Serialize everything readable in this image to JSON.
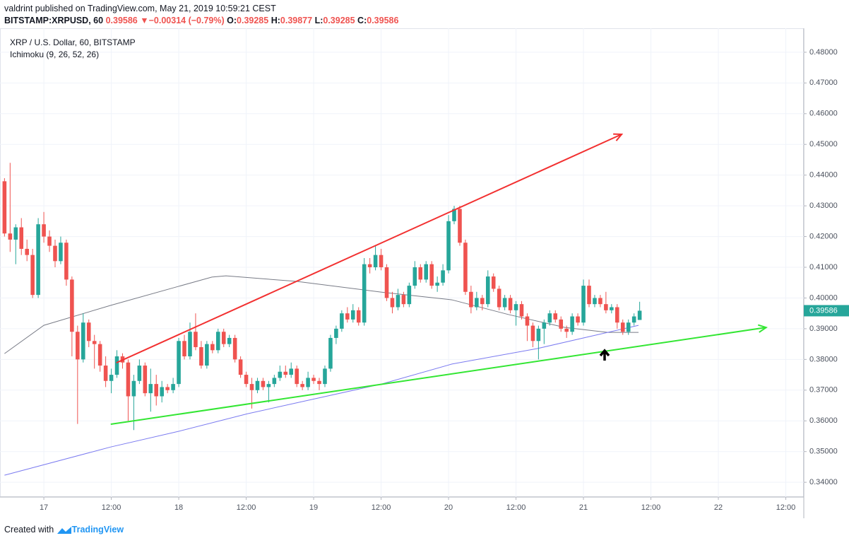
{
  "header": {
    "publisher": "valdrint published on TradingView.com, May 21, 2019 10:59:21 CEST",
    "symbol": "BITSTAMP:XRPUSD, 60",
    "last": "0.39586",
    "arrow": "▼",
    "change": "−0.00314 (−0.79%)",
    "o_label": "O:",
    "o": "0.39285",
    "h_label": "H:",
    "h": "0.39877",
    "l_label": "L:",
    "l": "0.39285",
    "c_label": "C:",
    "c": "0.39586"
  },
  "footer": {
    "created": "Created with",
    "brand": "TradingView"
  },
  "chart_data": {
    "type": "candlestick",
    "title": "XRP / U.S. Dollar, 60, BITSTAMP",
    "subtitle": "Ichimoku (9, 26, 52, 26)",
    "up_color": "#26a69a",
    "down_color": "#ef5350",
    "x": [
      -7,
      -6,
      -5,
      -4,
      -3,
      -2,
      -1,
      0,
      1,
      2,
      3,
      4,
      5,
      6,
      7,
      8,
      9,
      10,
      11,
      12,
      13,
      14,
      15,
      16,
      17,
      18,
      19,
      20,
      21,
      22,
      23,
      24,
      25,
      26,
      27,
      28,
      29,
      30,
      31,
      32,
      33,
      34,
      35,
      36,
      37,
      38,
      39,
      40,
      41,
      42,
      43,
      44,
      45,
      46,
      47,
      48,
      49,
      50,
      51,
      52,
      53,
      54,
      55,
      56,
      57,
      58,
      59,
      60,
      61,
      62,
      63,
      64,
      65,
      66,
      67,
      68,
      69,
      70,
      71,
      72,
      73,
      74,
      75,
      76,
      77,
      78,
      79,
      80,
      81,
      82,
      83,
      84,
      85,
      86,
      87,
      88,
      89,
      90,
      91,
      92,
      93,
      94,
      95,
      96,
      97,
      98,
      99,
      100,
      101,
      102,
      103,
      104,
      105,
      106
    ],
    "candles": [
      [
        0.438,
        0.439,
        0.42,
        0.421
      ],
      [
        0.421,
        0.444,
        0.415,
        0.419
      ],
      [
        0.419,
        0.424,
        0.411,
        0.423
      ],
      [
        0.423,
        0.426,
        0.414,
        0.416
      ],
      [
        0.416,
        0.419,
        0.412,
        0.414
      ],
      [
        0.414,
        0.416,
        0.4,
        0.401
      ],
      [
        0.401,
        0.426,
        0.4,
        0.424
      ],
      [
        0.424,
        0.428,
        0.418,
        0.42
      ],
      [
        0.42,
        0.422,
        0.415,
        0.417
      ],
      [
        0.417,
        0.419,
        0.41,
        0.412
      ],
      [
        0.412,
        0.42,
        0.411,
        0.418
      ],
      [
        0.418,
        0.419,
        0.404,
        0.406
      ],
      [
        0.406,
        0.407,
        0.381,
        0.389
      ],
      [
        0.389,
        0.391,
        0.359,
        0.38
      ],
      [
        0.38,
        0.395,
        0.379,
        0.392
      ],
      [
        0.392,
        0.393,
        0.384,
        0.386
      ],
      [
        0.386,
        0.388,
        0.377,
        0.385
      ],
      [
        0.385,
        0.386,
        0.376,
        0.378
      ],
      [
        0.378,
        0.381,
        0.371,
        0.373
      ],
      [
        0.373,
        0.377,
        0.369,
        0.375
      ],
      [
        0.375,
        0.383,
        0.374,
        0.381
      ],
      [
        0.381,
        0.382,
        0.377,
        0.379
      ],
      [
        0.379,
        0.38,
        0.36,
        0.368
      ],
      [
        0.368,
        0.375,
        0.357,
        0.373
      ],
      [
        0.373,
        0.38,
        0.372,
        0.378
      ],
      [
        0.378,
        0.379,
        0.368,
        0.369
      ],
      [
        0.369,
        0.377,
        0.363,
        0.372
      ],
      [
        0.372,
        0.375,
        0.365,
        0.368
      ],
      [
        0.368,
        0.373,
        0.366,
        0.371
      ],
      [
        0.371,
        0.372,
        0.369,
        0.37
      ],
      [
        0.37,
        0.374,
        0.369,
        0.372
      ],
      [
        0.372,
        0.387,
        0.371,
        0.386
      ],
      [
        0.386,
        0.388,
        0.38,
        0.381
      ],
      [
        0.381,
        0.392,
        0.38,
        0.389
      ],
      [
        0.389,
        0.395,
        0.383,
        0.384
      ],
      [
        0.384,
        0.386,
        0.377,
        0.378
      ],
      [
        0.378,
        0.386,
        0.377,
        0.385
      ],
      [
        0.385,
        0.386,
        0.382,
        0.383
      ],
      [
        0.383,
        0.39,
        0.382,
        0.389
      ],
      [
        0.389,
        0.39,
        0.384,
        0.385
      ],
      [
        0.385,
        0.388,
        0.384,
        0.387
      ],
      [
        0.387,
        0.388,
        0.379,
        0.38
      ],
      [
        0.38,
        0.381,
        0.374,
        0.375
      ],
      [
        0.375,
        0.376,
        0.371,
        0.372
      ],
      [
        0.372,
        0.374,
        0.364,
        0.37
      ],
      [
        0.37,
        0.374,
        0.369,
        0.373
      ],
      [
        0.373,
        0.374,
        0.37,
        0.371
      ],
      [
        0.371,
        0.373,
        0.366,
        0.372
      ],
      [
        0.372,
        0.375,
        0.371,
        0.374
      ],
      [
        0.374,
        0.378,
        0.373,
        0.376
      ],
      [
        0.376,
        0.378,
        0.374,
        0.375
      ],
      [
        0.375,
        0.379,
        0.374,
        0.377
      ],
      [
        0.377,
        0.378,
        0.371,
        0.372
      ],
      [
        0.372,
        0.373,
        0.37,
        0.371
      ],
      [
        0.371,
        0.376,
        0.37,
        0.374
      ],
      [
        0.374,
        0.375,
        0.372,
        0.373
      ],
      [
        0.373,
        0.374,
        0.37,
        0.372
      ],
      [
        0.372,
        0.378,
        0.371,
        0.377
      ],
      [
        0.377,
        0.388,
        0.376,
        0.387
      ],
      [
        0.387,
        0.391,
        0.385,
        0.39
      ],
      [
        0.39,
        0.396,
        0.389,
        0.395
      ],
      [
        0.395,
        0.397,
        0.392,
        0.393
      ],
      [
        0.393,
        0.398,
        0.392,
        0.396
      ],
      [
        0.396,
        0.397,
        0.391,
        0.392
      ],
      [
        0.392,
        0.413,
        0.391,
        0.411
      ],
      [
        0.411,
        0.413,
        0.408,
        0.41
      ],
      [
        0.41,
        0.417,
        0.409,
        0.414
      ],
      [
        0.414,
        0.416,
        0.409,
        0.41
      ],
      [
        0.41,
        0.411,
        0.399,
        0.4
      ],
      [
        0.4,
        0.402,
        0.395,
        0.397
      ],
      [
        0.397,
        0.403,
        0.396,
        0.401
      ],
      [
        0.401,
        0.402,
        0.397,
        0.398
      ],
      [
        0.398,
        0.405,
        0.397,
        0.404
      ],
      [
        0.404,
        0.412,
        0.403,
        0.41
      ],
      [
        0.41,
        0.411,
        0.405,
        0.406
      ],
      [
        0.406,
        0.412,
        0.405,
        0.411
      ],
      [
        0.411,
        0.412,
        0.403,
        0.404
      ],
      [
        0.404,
        0.407,
        0.402,
        0.405
      ],
      [
        0.405,
        0.411,
        0.404,
        0.409
      ],
      [
        0.409,
        0.427,
        0.408,
        0.425
      ],
      [
        0.425,
        0.43,
        0.424,
        0.429
      ],
      [
        0.429,
        0.43,
        0.417,
        0.418
      ],
      [
        0.418,
        0.419,
        0.401,
        0.402
      ],
      [
        0.402,
        0.404,
        0.395,
        0.397
      ],
      [
        0.397,
        0.402,
        0.396,
        0.4
      ],
      [
        0.4,
        0.401,
        0.396,
        0.398
      ],
      [
        0.398,
        0.409,
        0.397,
        0.407
      ],
      [
        0.407,
        0.408,
        0.402,
        0.403
      ],
      [
        0.403,
        0.404,
        0.396,
        0.397
      ],
      [
        0.397,
        0.401,
        0.396,
        0.4
      ],
      [
        0.4,
        0.401,
        0.395,
        0.396
      ],
      [
        0.396,
        0.399,
        0.391,
        0.398
      ],
      [
        0.398,
        0.399,
        0.393,
        0.394
      ],
      [
        0.394,
        0.395,
        0.386,
        0.391
      ],
      [
        0.391,
        0.392,
        0.384,
        0.386
      ],
      [
        0.386,
        0.391,
        0.38,
        0.39
      ],
      [
        0.39,
        0.393,
        0.385,
        0.392
      ],
      [
        0.392,
        0.396,
        0.391,
        0.395
      ],
      [
        0.395,
        0.396,
        0.392,
        0.393
      ],
      [
        0.393,
        0.394,
        0.389,
        0.39
      ],
      [
        0.39,
        0.391,
        0.387,
        0.389
      ],
      [
        0.389,
        0.395,
        0.388,
        0.394
      ],
      [
        0.394,
        0.395,
        0.391,
        0.392
      ],
      [
        0.392,
        0.406,
        0.391,
        0.404
      ],
      [
        0.404,
        0.406,
        0.397,
        0.398
      ],
      [
        0.398,
        0.401,
        0.397,
        0.4
      ],
      [
        0.4,
        0.401,
        0.397,
        0.398
      ],
      [
        0.398,
        0.402,
        0.395,
        0.396
      ],
      [
        0.396,
        0.398,
        0.395,
        0.397
      ],
      [
        0.397,
        0.398,
        0.39,
        0.392
      ],
      [
        0.392,
        0.393,
        0.388,
        0.389
      ],
      [
        0.389,
        0.393,
        0.388,
        0.392
      ],
      [
        0.392,
        0.395,
        0.391,
        0.394
      ],
      [
        0.39285,
        0.39877,
        0.39285,
        0.39586
      ]
    ],
    "lines": [
      {
        "color": "#787b86",
        "x": [
          -7,
          0,
          11.9,
          24,
          29.9,
          32.4,
          45,
          60.1,
          72.6,
          82.7,
          92.7,
          100.3,
          105.8
        ],
        "values": [
          0.3819,
          0.3911,
          0.3976,
          0.4038,
          0.4068,
          0.4072,
          0.4054,
          0.4019,
          0.3994,
          0.3946,
          0.3904,
          0.3888,
          0.3888
        ]
      },
      {
        "color": "#7b7bf0",
        "x": [
          -7,
          11.9,
          24,
          36.2,
          60.1,
          72.6,
          87.7,
          100.3,
          105.8
        ],
        "values": [
          0.3423,
          0.3515,
          0.3566,
          0.3623,
          0.372,
          0.3785,
          0.3835,
          0.3888,
          0.3911
        ]
      }
    ],
    "trendlines": [
      {
        "color": "#f23030",
        "x": [
          12.9,
          102.8
        ],
        "values": [
          0.3789,
          0.4533
        ]
      },
      {
        "color": "#33e633",
        "x": [
          11.9,
          128.5
        ],
        "values": [
          0.3589,
          0.3904
        ]
      }
    ],
    "last_price": {
      "value": 0.39586,
      "label": "0.39586"
    },
    "xlim": [
      -7.8,
      135.2
    ],
    "ylim": [
      0.3352,
      0.4878
    ],
    "xticks": [
      {
        "value": 0,
        "label": "17"
      },
      {
        "value": 12,
        "label": "12:00"
      },
      {
        "value": 24,
        "label": "18"
      },
      {
        "value": 36,
        "label": "12:00"
      },
      {
        "value": 48,
        "label": "19"
      },
      {
        "value": 60,
        "label": "12:00"
      },
      {
        "value": 72,
        "label": "20"
      },
      {
        "value": 84,
        "label": "12:00"
      },
      {
        "value": 96,
        "label": "21"
      },
      {
        "value": 108,
        "label": "12:00"
      },
      {
        "value": 120,
        "label": "22"
      },
      {
        "value": 132,
        "label": "12:00"
      }
    ],
    "yticks": [
      {
        "value": 0.34,
        "label": "0.34000"
      },
      {
        "value": 0.35,
        "label": "0.35000"
      },
      {
        "value": 0.36,
        "label": "0.36000"
      },
      {
        "value": 0.37,
        "label": "0.37000"
      },
      {
        "value": 0.38,
        "label": "0.38000"
      },
      {
        "value": 0.39,
        "label": "0.39000"
      },
      {
        "value": 0.4,
        "label": "0.40000"
      },
      {
        "value": 0.41,
        "label": "0.41000"
      },
      {
        "value": 0.42,
        "label": "0.42000"
      },
      {
        "value": 0.43,
        "label": "0.43000"
      },
      {
        "value": 0.44,
        "label": "0.44000"
      },
      {
        "value": 0.45,
        "label": "0.45000"
      },
      {
        "value": 0.46,
        "label": "0.46000"
      },
      {
        "value": 0.47,
        "label": "0.47000"
      },
      {
        "value": 0.48,
        "label": "0.48000"
      }
    ],
    "grid": true
  }
}
